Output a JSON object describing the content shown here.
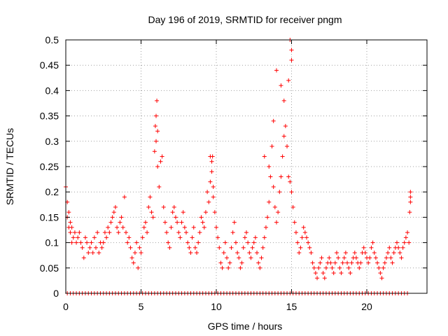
{
  "chart_data": {
    "type": "scatter",
    "title": "Day 196 of 2019, SRMTID for receiver pngm",
    "xlabel": "GPS time / hours",
    "ylabel": "SRMTID / TECUs",
    "xlim": [
      0,
      24
    ],
    "ylim": [
      0,
      0.5
    ],
    "xticks": [
      0,
      5,
      10,
      15,
      20
    ],
    "xtick_labels": [
      "0",
      "5",
      "10",
      "15",
      "20"
    ],
    "yticks": [
      0,
      0.05,
      0.1,
      0.15,
      0.2,
      0.25,
      0.3,
      0.35,
      0.4,
      0.45,
      0.5
    ],
    "ytick_labels": [
      "0",
      "0.05",
      "0.1",
      "0.15",
      "0.2",
      "0.25",
      "0.3",
      "0.35",
      "0.4",
      "0.45",
      "0.5"
    ],
    "grid": true,
    "marker": "+",
    "marker_color": "#ff0000",
    "series": [
      {
        "name": "SRMTID",
        "x": [
          0.0,
          0.1,
          0.1,
          0.2,
          0.2,
          0.3,
          0.3,
          0.4,
          0.4,
          0.5,
          0.6,
          0.7,
          0.8,
          0.9,
          1.0,
          1.1,
          1.2,
          1.3,
          1.4,
          1.5,
          1.6,
          1.7,
          1.8,
          1.9,
          2.0,
          2.1,
          2.2,
          2.3,
          2.4,
          2.5,
          2.6,
          2.7,
          2.8,
          2.9,
          3.0,
          3.1,
          3.2,
          3.3,
          3.4,
          3.5,
          3.6,
          3.7,
          3.8,
          3.9,
          4.0,
          4.1,
          4.2,
          4.3,
          4.4,
          4.5,
          4.6,
          4.7,
          4.8,
          4.9,
          5.0,
          5.1,
          5.2,
          5.3,
          5.4,
          5.5,
          5.6,
          5.7,
          5.8,
          5.9,
          5.95,
          6.0,
          6.05,
          6.1,
          6.2,
          6.3,
          6.4,
          6.5,
          6.6,
          6.7,
          6.8,
          6.9,
          7.0,
          7.1,
          7.2,
          7.3,
          7.4,
          7.5,
          7.6,
          7.7,
          7.8,
          7.9,
          8.0,
          8.1,
          8.2,
          8.3,
          8.4,
          8.5,
          8.6,
          8.7,
          8.8,
          8.9,
          9.0,
          9.1,
          9.2,
          9.3,
          9.4,
          9.5,
          9.6,
          9.7,
          9.75,
          9.8,
          9.9,
          10.0,
          10.1,
          10.2,
          10.3,
          10.4,
          10.5,
          10.6,
          10.7,
          10.8,
          10.9,
          11.0,
          11.1,
          11.2,
          11.3,
          11.4,
          11.5,
          11.6,
          11.7,
          11.8,
          11.9,
          12.0,
          12.1,
          12.2,
          12.3,
          12.4,
          12.5,
          12.6,
          12.7,
          12.8,
          12.9,
          13.0,
          13.1,
          13.2,
          13.3,
          13.4,
          13.5,
          13.6,
          13.7,
          13.8,
          13.9,
          14.0,
          14.1,
          14.2,
          14.3,
          14.4,
          14.5,
          14.6,
          14.7,
          14.8,
          14.9,
          15.0,
          15.1,
          15.2,
          15.3,
          15.4,
          15.5,
          15.6,
          15.7,
          15.8,
          15.9,
          16.0,
          16.1,
          16.2,
          16.3,
          16.4,
          16.5,
          16.6,
          16.7,
          16.8,
          16.9,
          17.0,
          17.1,
          17.2,
          17.3,
          17.4,
          17.5,
          17.6,
          17.7,
          17.8,
          17.9,
          18.0,
          18.1,
          18.2,
          18.3,
          18.4,
          18.5,
          18.6,
          18.7,
          18.8,
          18.9,
          19.0,
          19.1,
          19.2,
          19.3,
          19.4,
          19.5,
          19.6,
          19.7,
          19.8,
          19.9,
          20.0,
          20.1,
          20.2,
          20.3,
          20.4,
          20.5,
          20.6,
          20.7,
          20.8,
          20.9,
          21.0,
          21.1,
          21.2,
          21.3,
          21.4,
          21.5,
          21.6,
          21.7,
          21.8,
          21.9,
          22.0,
          22.1,
          22.2,
          22.3,
          22.4,
          22.5,
          22.6,
          22.7,
          22.8,
          22.9,
          22.9,
          22.9,
          22.85,
          13.2,
          13.5,
          13.8,
          14.0,
          14.3,
          14.5,
          14.8,
          14.9,
          15.0,
          15.0,
          6.0,
          6.1,
          9.6,
          9.7,
          9.8
        ],
        "y": [
          0.21,
          0.18,
          0.15,
          0.13,
          0.16,
          0.12,
          0.14,
          0.1,
          0.13,
          0.11,
          0.12,
          0.1,
          0.11,
          0.12,
          0.1,
          0.09,
          0.07,
          0.11,
          0.1,
          0.08,
          0.09,
          0.1,
          0.08,
          0.11,
          0.09,
          0.12,
          0.08,
          0.1,
          0.09,
          0.1,
          0.12,
          0.11,
          0.13,
          0.12,
          0.14,
          0.15,
          0.16,
          0.17,
          0.13,
          0.12,
          0.14,
          0.15,
          0.13,
          0.19,
          0.12,
          0.1,
          0.11,
          0.09,
          0.07,
          0.06,
          0.08,
          0.1,
          0.05,
          0.09,
          0.08,
          0.11,
          0.13,
          0.14,
          0.12,
          0.17,
          0.19,
          0.16,
          0.15,
          0.28,
          0.33,
          0.3,
          0.38,
          0.25,
          0.21,
          0.26,
          0.27,
          0.17,
          0.14,
          0.12,
          0.1,
          0.09,
          0.13,
          0.16,
          0.17,
          0.15,
          0.14,
          0.12,
          0.11,
          0.14,
          0.16,
          0.13,
          0.12,
          0.1,
          0.09,
          0.08,
          0.11,
          0.13,
          0.09,
          0.08,
          0.1,
          0.12,
          0.15,
          0.14,
          0.13,
          0.16,
          0.2,
          0.18,
          0.22,
          0.24,
          0.27,
          0.19,
          0.16,
          0.13,
          0.11,
          0.09,
          0.06,
          0.05,
          0.08,
          0.1,
          0.07,
          0.05,
          0.06,
          0.09,
          0.12,
          0.14,
          0.1,
          0.08,
          0.07,
          0.05,
          0.06,
          0.09,
          0.11,
          0.12,
          0.1,
          0.08,
          0.07,
          0.09,
          0.1,
          0.11,
          0.08,
          0.06,
          0.05,
          0.07,
          0.09,
          0.11,
          0.13,
          0.15,
          0.18,
          0.23,
          0.29,
          0.21,
          0.17,
          0.14,
          0.16,
          0.2,
          0.23,
          0.27,
          0.31,
          0.33,
          0.29,
          0.23,
          0.22,
          0.2,
          0.17,
          0.14,
          0.12,
          0.1,
          0.08,
          0.09,
          0.11,
          0.13,
          0.12,
          0.11,
          0.1,
          0.09,
          0.08,
          0.06,
          0.05,
          0.04,
          0.03,
          0.05,
          0.06,
          0.07,
          0.04,
          0.03,
          0.05,
          0.06,
          0.07,
          0.06,
          0.05,
          0.04,
          0.06,
          0.08,
          0.07,
          0.05,
          0.04,
          0.06,
          0.07,
          0.08,
          0.06,
          0.05,
          0.04,
          0.06,
          0.07,
          0.08,
          0.07,
          0.06,
          0.05,
          0.06,
          0.08,
          0.09,
          0.08,
          0.07,
          0.06,
          0.07,
          0.09,
          0.1,
          0.08,
          0.07,
          0.06,
          0.05,
          0.04,
          0.03,
          0.05,
          0.06,
          0.07,
          0.08,
          0.09,
          0.07,
          0.06,
          0.08,
          0.09,
          0.1,
          0.09,
          0.08,
          0.07,
          0.09,
          0.1,
          0.11,
          0.12,
          0.1,
          0.19,
          0.2,
          0.18,
          0.16,
          0.27,
          0.25,
          0.34,
          0.44,
          0.41,
          0.38,
          0.42,
          0.5,
          0.48,
          0.46,
          0.35,
          0.32,
          0.27,
          0.26,
          0.21
        ],
        "zero_flag_x": [
          0.1,
          0.3,
          0.5,
          0.7,
          0.9,
          1.1,
          1.3,
          1.5,
          1.7,
          1.9,
          2.1,
          2.3,
          2.5,
          2.7,
          2.9,
          3.1,
          3.3,
          3.5,
          3.7,
          3.9,
          4.1,
          4.3,
          4.5,
          4.7,
          4.9,
          5.1,
          5.3,
          5.5,
          5.7,
          5.9,
          6.1,
          6.3,
          6.5,
          6.7,
          6.9,
          7.1,
          7.3,
          7.5,
          7.7,
          7.9,
          8.1,
          8.3,
          8.5,
          8.7,
          8.9,
          9.1,
          9.3,
          9.5,
          9.7,
          9.9,
          10.1,
          10.3,
          10.5,
          10.7,
          10.9,
          11.1,
          11.3,
          11.5,
          11.7,
          11.9,
          12.1,
          12.3,
          12.5,
          12.7,
          12.9,
          13.1,
          13.3,
          13.5,
          13.7,
          13.9,
          14.1,
          14.3,
          14.5,
          14.7,
          14.9,
          15.1,
          15.3,
          15.5,
          15.7,
          15.9,
          16.1,
          16.3,
          16.5,
          16.7,
          16.9,
          17.1,
          17.3,
          17.5,
          17.7,
          17.9,
          18.1,
          18.3,
          18.5,
          18.7,
          18.9,
          19.1,
          19.3,
          19.5,
          19.7,
          19.9,
          20.1,
          20.3,
          20.5,
          20.7,
          20.9,
          21.1,
          21.3,
          21.5,
          21.7,
          21.9,
          22.1,
          22.3,
          22.5,
          22.7
        ]
      }
    ]
  }
}
